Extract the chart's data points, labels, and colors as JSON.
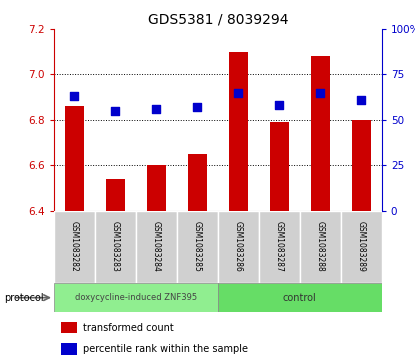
{
  "title": "GDS5381 / 8039294",
  "samples": [
    "GSM1083282",
    "GSM1083283",
    "GSM1083284",
    "GSM1083285",
    "GSM1083286",
    "GSM1083287",
    "GSM1083288",
    "GSM1083289"
  ],
  "transformed_count": [
    6.86,
    6.54,
    6.6,
    6.65,
    7.1,
    6.79,
    7.08,
    6.8
  ],
  "percentile_rank": [
    63,
    55,
    56,
    57,
    65,
    58,
    65,
    61
  ],
  "ylim_left": [
    6.4,
    7.2
  ],
  "ylim_right": [
    0,
    100
  ],
  "yticks_left": [
    6.4,
    6.6,
    6.8,
    7.0,
    7.2
  ],
  "yticks_right": [
    0,
    25,
    50,
    75,
    100
  ],
  "yticklabels_right": [
    "0",
    "25",
    "50",
    "75",
    "100%"
  ],
  "bar_color": "#cc0000",
  "dot_color": "#0000cc",
  "protocol_groups": [
    {
      "label": "doxycycline-induced ZNF395",
      "start": 0,
      "end": 4,
      "color": "#90EE90"
    },
    {
      "label": "control",
      "start": 4,
      "end": 8,
      "color": "#66DD66"
    }
  ],
  "protocol_label": "protocol",
  "legend_items": [
    {
      "color": "#cc0000",
      "label": "transformed count"
    },
    {
      "color": "#0000cc",
      "label": "percentile rank within the sample"
    }
  ],
  "bar_width": 0.45,
  "dot_size": 35,
  "tick_label_fontsize": 7.5,
  "title_fontsize": 10,
  "left_axis_color": "#cc0000",
  "right_axis_color": "#0000cc",
  "sample_label_fontsize": 5.5,
  "protocol_label_fontsize": 7,
  "legend_fontsize": 7,
  "gray_color": "#d0d0d0"
}
